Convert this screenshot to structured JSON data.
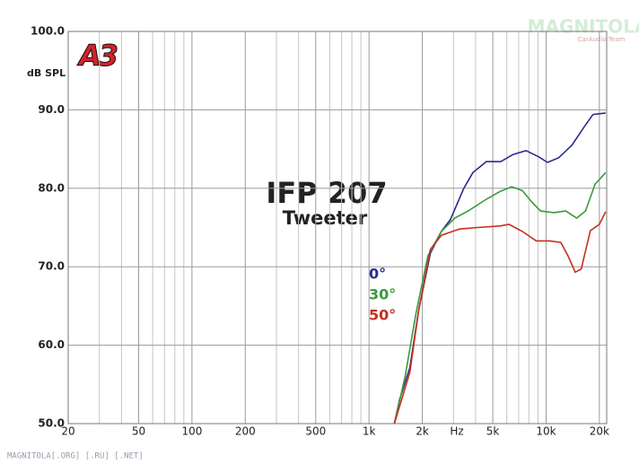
{
  "chart_data": {
    "type": "line",
    "title": "IFP 207",
    "subtitle": "Tweeter",
    "y_label": "dB SPL",
    "x_label": "Hz",
    "logo": "A3",
    "watermark": "MAGNITOLA",
    "watermark_sub": "CarAudio Team",
    "footer": "MAGNITOLA[.ORG] [.RU] [.NET]",
    "xscale": "log",
    "grid": true,
    "xlim": [
      20,
      22000
    ],
    "ylim": [
      50,
      100
    ],
    "xticks": [
      20,
      50,
      100,
      200,
      500,
      {
        "value": 1000,
        "label": "1k"
      },
      {
        "value": 2000,
        "label": "2k"
      },
      {
        "value": 5000,
        "label": "5k"
      },
      {
        "value": 10000,
        "label": "10k"
      },
      {
        "value": 20000,
        "label": "20k"
      }
    ],
    "xgrid": [
      30,
      40,
      60,
      70,
      80,
      90,
      300,
      400,
      600,
      700,
      800,
      900,
      3000,
      4000,
      6000,
      7000,
      8000,
      9000
    ],
    "yticks": [
      {
        "value": 50,
        "label": "50.0"
      },
      {
        "value": 60,
        "label": "60.0"
      },
      {
        "value": 70,
        "label": "70.0"
      },
      {
        "value": 80,
        "label": "80.0"
      },
      {
        "value": 90,
        "label": "90.0"
      },
      {
        "value": 100,
        "label": "100.0"
      }
    ],
    "series": [
      {
        "name": "0°",
        "color": "#2b2b8c",
        "x": [
          1390,
          1490,
          1700,
          1910,
          2220,
          2560,
          2880,
          3430,
          3860,
          4600,
          5550,
          6500,
          7700,
          9100,
          10200,
          11800,
          14000,
          16400,
          18400,
          21700
        ],
        "values": [
          50,
          53.1,
          57.1,
          64.5,
          71.7,
          74.5,
          76,
          80,
          82,
          83.4,
          83.4,
          84.3,
          84.8,
          84,
          83.3,
          83.9,
          85.5,
          87.8,
          89.4,
          89.6
        ]
      },
      {
        "name": "30°",
        "color": "#3a9a3a",
        "x": [
          1390,
          1600,
          1840,
          2150,
          2560,
          3050,
          3630,
          4600,
          5500,
          6400,
          7350,
          8270,
          9300,
          11100,
          12900,
          14900,
          16700,
          18900,
          21700
        ],
        "values": [
          50,
          56,
          64,
          71.4,
          74.5,
          76.2,
          77.1,
          78.6,
          79.6,
          80.2,
          79.7,
          78.3,
          77.1,
          76.9,
          77.1,
          76.2,
          77.1,
          80.5,
          82
        ]
      },
      {
        "name": "50°",
        "color": "#c4301c",
        "x": [
          1390,
          1700,
          1910,
          2220,
          2560,
          3240,
          4100,
          5500,
          6170,
          7350,
          8800,
          10500,
          12100,
          13300,
          14600,
          15800,
          17800,
          20000,
          21700
        ],
        "values": [
          50,
          56.5,
          64.5,
          72.2,
          74,
          74.8,
          75,
          75.2,
          75.4,
          74.5,
          73.3,
          73.3,
          73.1,
          71.4,
          69.3,
          69.7,
          74.6,
          75.4,
          77
        ]
      }
    ]
  }
}
